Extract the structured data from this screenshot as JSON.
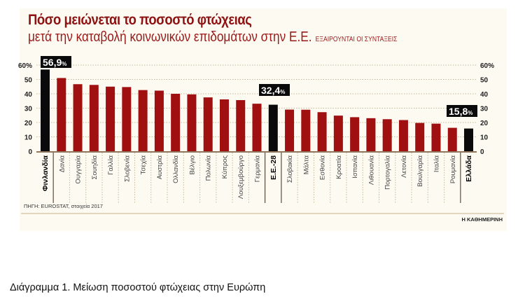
{
  "chart_data": {
    "type": "bar",
    "title": "Πόσο μειώνεται το ποσοστό φτώχειας",
    "subtitle": "μετά την καταβολή κοινωνικών επιδομάτων στην Ε.Ε.",
    "subtitle_note": "ΕΞΑΙΡΟΥΝΤΑΙ ΟΙ ΣΥΝΤΑΞΕΙΣ",
    "ylim": [
      0,
      60
    ],
    "yticks": [
      "0",
      "10",
      "20",
      "30",
      "40",
      "50",
      "60%"
    ],
    "grid": true,
    "categories": [
      "Φινλανδία",
      "Δανία",
      "Ουγγαρία",
      "Σουηδία",
      "Γαλλία",
      "Σλοβενία",
      "Τσεχία",
      "Αυστρία",
      "Ολλανδία",
      "Βέλγιο",
      "Πολωνία",
      "Κύπρος",
      "Λουξεμβούργο",
      "Γερμανία",
      "Ε.Ε.-28",
      "Σλοβακία",
      "Μάλτα",
      "Εσθονία",
      "Κροατία",
      "Ισπανία",
      "Λιθουανία",
      "Πορτογαλία",
      "Λετονία",
      "Βουλγαρία",
      "Ιταλία",
      "Ρουμανία",
      "Ελλάδα"
    ],
    "values": [
      56.9,
      51.0,
      46.7,
      46.2,
      45.0,
      44.7,
      42.6,
      42.2,
      40.0,
      39.6,
      37.5,
      36.1,
      35.6,
      33.1,
      32.4,
      29.0,
      28.9,
      27.2,
      24.8,
      23.7,
      23.0,
      22.3,
      21.7,
      19.7,
      19.2,
      16.3,
      15.8
    ],
    "highlighted": [
      "Φινλανδία",
      "Ε.Ε.-28",
      "Ελλάδα"
    ],
    "data_labels": [
      {
        "category": "Φινλανδία",
        "text": "56,9",
        "unit": "%"
      },
      {
        "category": "Ε.Ε.-28",
        "text": "32,4",
        "unit": "%"
      },
      {
        "category": "Ελλάδα",
        "text": "15,8",
        "unit": "%"
      }
    ],
    "colors": {
      "bar": "#a01010",
      "highlight": "#0a0a0a",
      "background": "#fdfaf2",
      "title": "#8e1212"
    }
  },
  "source": "ΠΗΓΗ: EUROSTAT, στοιχεία 2017",
  "publisher": "Η ΚΑΘΗΜΕΡΙΝΗ",
  "caption": "Διάγραμμα 1.  Μείωση ποσοστού φτώχειας στην Ευρώπη"
}
